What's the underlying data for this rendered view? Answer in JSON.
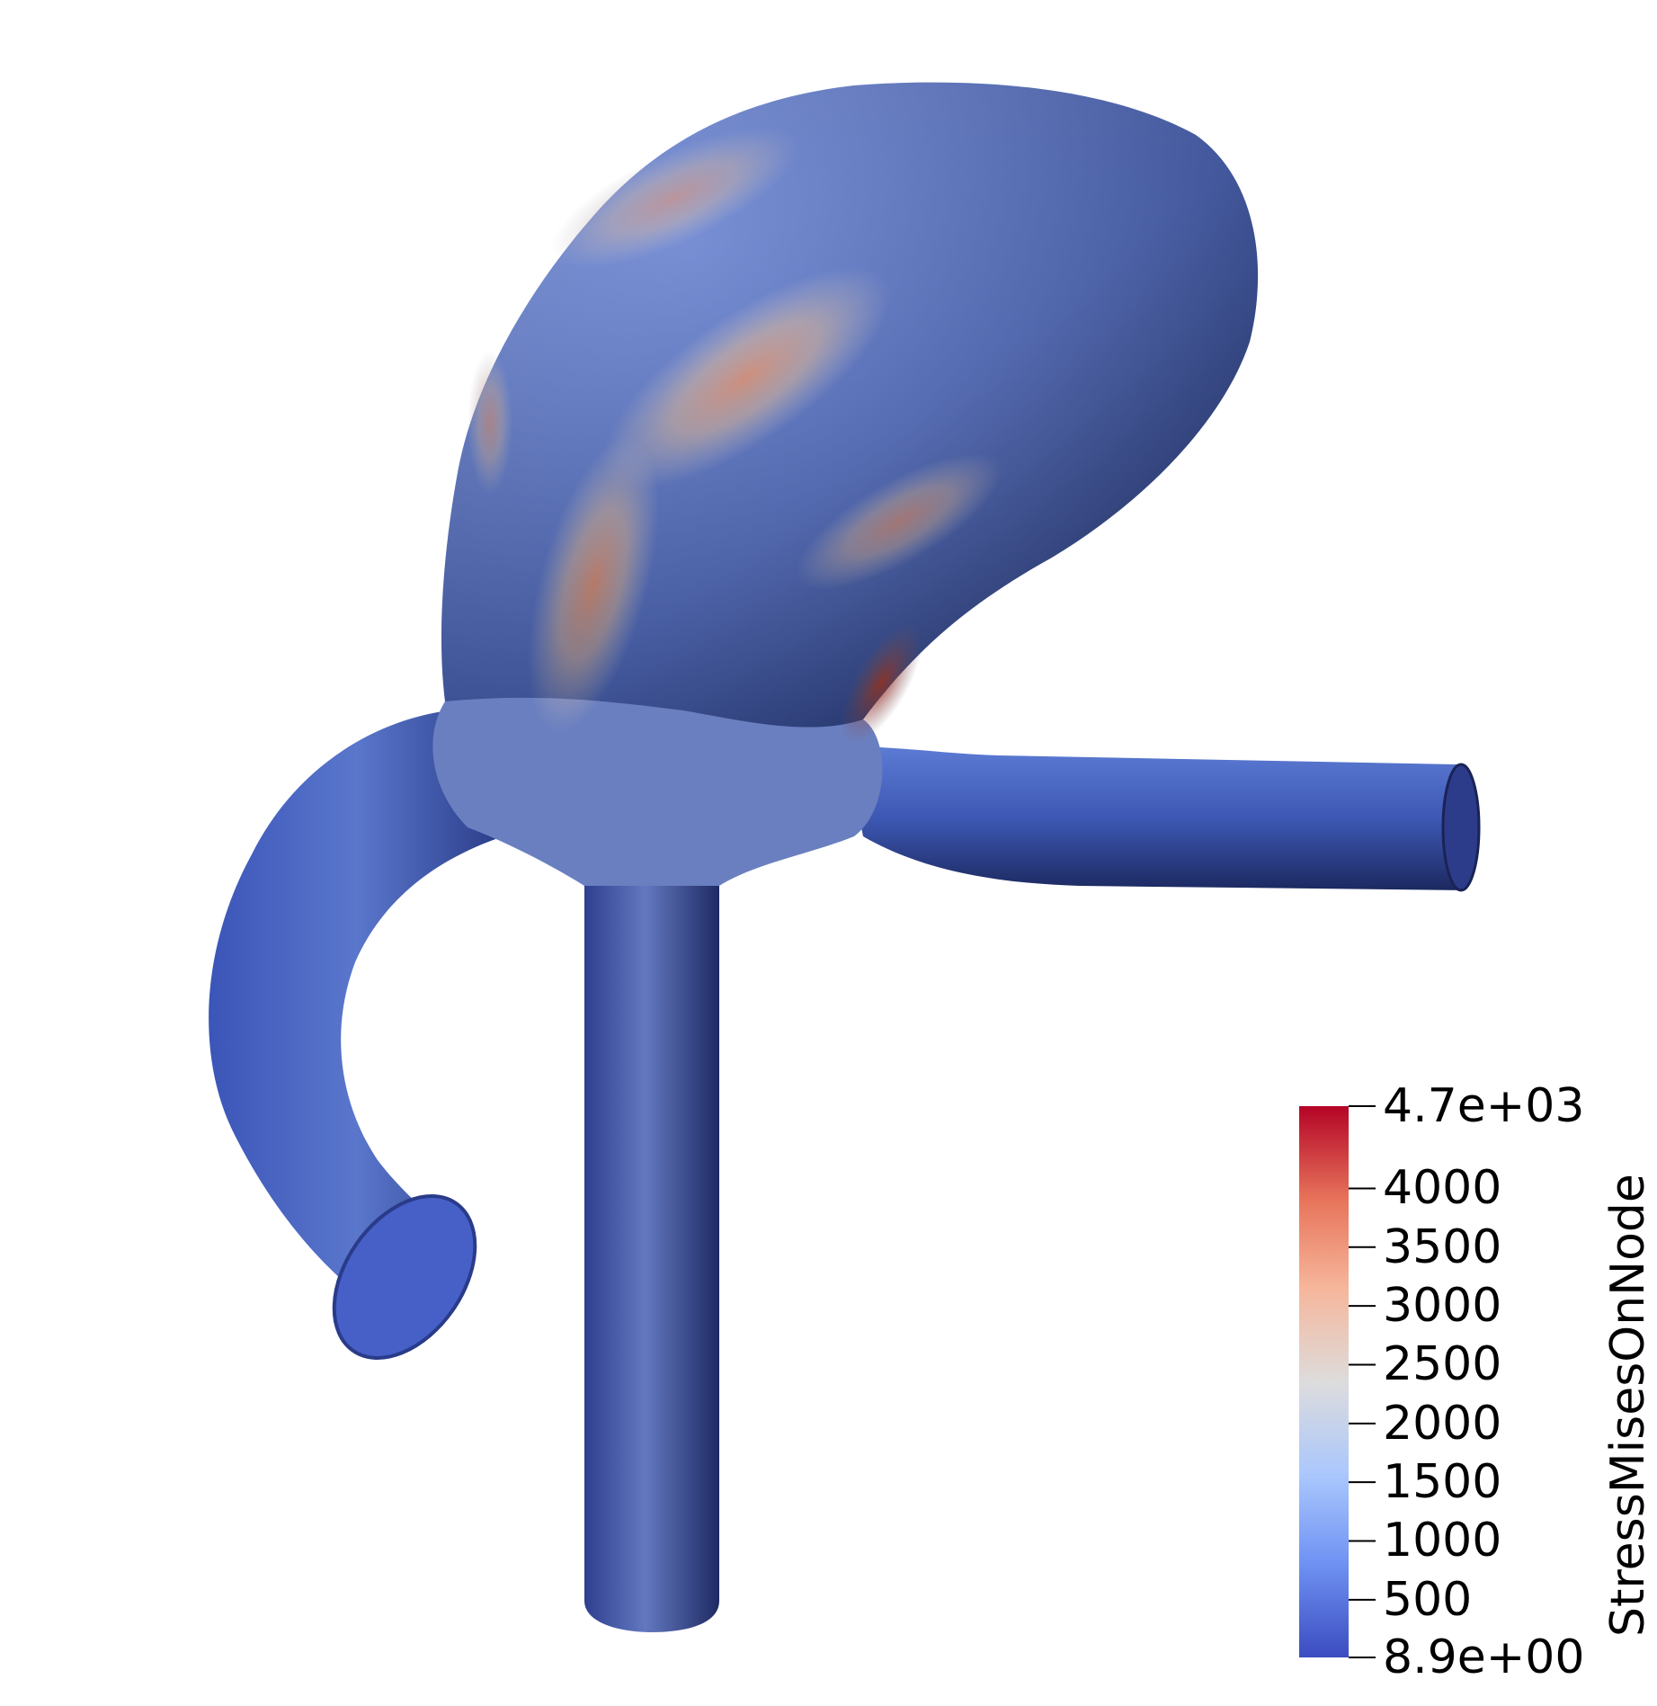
{
  "scene": {
    "background": "#ffffff",
    "object": "vessel-aneurysm-surface"
  },
  "colorbar": {
    "title": "StressMisesOnNode",
    "range": [
      8.9,
      4700
    ],
    "colors": [
      "#3b4cc0",
      "#6f92f3",
      "#aac7fd",
      "#dddcdc",
      "#f6b69b",
      "#e7745b",
      "#b40426"
    ],
    "ticks": [
      {
        "value": 4700,
        "label": "4.7e+03"
      },
      {
        "value": 4000,
        "label": "4000"
      },
      {
        "value": 3500,
        "label": "3500"
      },
      {
        "value": 3000,
        "label": "3000"
      },
      {
        "value": 2500,
        "label": "2500"
      },
      {
        "value": 2000,
        "label": "2000"
      },
      {
        "value": 1500,
        "label": "1500"
      },
      {
        "value": 1000,
        "label": "1000"
      },
      {
        "value": 500,
        "label": "500"
      },
      {
        "value": 8.9,
        "label": "8.9e+00"
      }
    ]
  }
}
